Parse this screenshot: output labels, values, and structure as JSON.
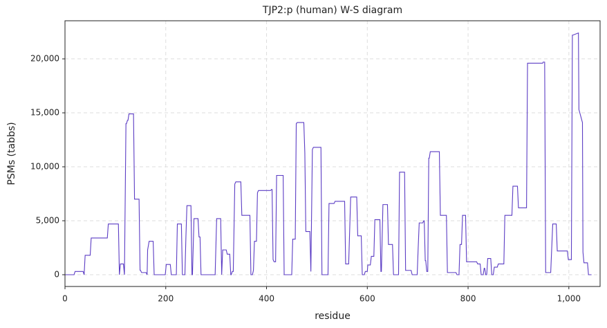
{
  "chart_data": {
    "type": "line",
    "title": "TJP2:p (human) W-S diagram",
    "x_label": "residue",
    "y_label": "PSMs (tabbs)",
    "xlim": [
      0,
      1062
    ],
    "ylim": [
      -1090,
      23530
    ],
    "xticks": [
      0,
      200,
      400,
      600,
      800,
      {
        "value": 1000,
        "label": "1,000"
      }
    ],
    "yticks": [
      0,
      {
        "value": 5000,
        "label": "5,000"
      },
      {
        "value": 10000,
        "label": "10,000"
      },
      {
        "value": 15000,
        "label": "15,000"
      },
      {
        "value": 20000,
        "label": "20,000"
      }
    ],
    "grid": true,
    "series": [
      {
        "color": "#5b3cc4",
        "x": [
          0,
          18,
          20,
          36,
          38,
          38,
          40,
          50,
          52,
          84,
          86,
          106,
          108,
          108,
          110,
          116,
          118,
          118,
          121,
          122,
          124,
          125,
          127,
          136,
          138,
          147,
          149,
          150,
          152,
          161,
          163,
          163,
          164,
          164,
          167,
          175,
          177,
          199,
          201,
          209,
          211,
          221,
          223,
          231,
          233,
          238,
          240,
          240,
          242,
          250,
          252,
          253,
          256,
          264,
          266,
          268,
          270,
          298,
          301,
          309,
          311,
          311,
          313,
          320,
          322,
          327,
          329,
          330,
          332,
          334,
          337,
          337,
          339,
          349,
          351,
          367,
          369,
          372,
          374,
          374,
          376,
          380,
          382,
          382,
          384,
          408,
          410,
          411,
          413,
          413,
          415,
          418,
          420,
          433,
          435,
          450,
          452,
          457,
          459,
          459,
          461,
          474,
          476,
          476,
          478,
          486,
          488,
          488,
          491,
          491,
          493,
          508,
          510,
          522,
          524,
          534,
          536,
          555,
          557,
          563,
          567,
          579,
          581,
          588,
          590,
          594,
          596,
          600,
          601,
          606,
          608,
          613,
          615,
          625,
          627,
          628,
          631,
          640,
          642,
          650,
          652,
          662,
          664,
          674,
          676,
          687,
          689,
          699,
          701,
          701,
          703,
          710,
          712,
          713,
          715,
          716,
          718,
          720,
          722,
          723,
          725,
          743,
          745,
          757,
          759,
          776,
          778,
          782,
          784,
          787,
          789,
          795,
          797,
          817,
          819,
          824,
          826,
          830,
          832,
          833,
          835,
          837,
          839,
          845,
          847,
          850,
          852,
          858,
          860,
          871,
          873,
          887,
          889,
          898,
          900,
          916,
          918,
          948,
          949,
          952,
          954,
          964,
          968,
          975,
          977,
          997,
          999,
          1005,
          1007,
          1008,
          1019,
          1019,
          1020,
          1020,
          1027,
          1027,
          1028,
          1028,
          1030,
          1037,
          1039,
          1045
        ],
        "values": [
          0,
          0,
          300,
          300,
          0,
          0,
          1800,
          1800,
          3400,
          3400,
          4700,
          4700,
          0,
          0,
          1000,
          1000,
          0,
          0,
          14000,
          14000,
          14300,
          14300,
          14900,
          14900,
          7000,
          7000,
          400,
          400,
          200,
          200,
          0,
          0,
          2300,
          2300,
          3100,
          3100,
          0,
          0,
          950,
          950,
          0,
          0,
          4700,
          4700,
          0,
          0,
          3500,
          3500,
          6400,
          6400,
          0,
          0,
          5200,
          5200,
          3500,
          3500,
          0,
          0,
          5200,
          5200,
          0,
          0,
          2300,
          2300,
          1900,
          1900,
          0,
          0,
          300,
          300,
          8400,
          8400,
          8600,
          8600,
          5500,
          5500,
          0,
          0,
          400,
          400,
          3100,
          3100,
          7600,
          7600,
          7800,
          7800,
          7900,
          7900,
          1400,
          1400,
          1200,
          1200,
          9200,
          9200,
          0,
          0,
          3300,
          3300,
          14000,
          14000,
          14100,
          14100,
          11300,
          11300,
          4000,
          4000,
          300,
          300,
          11600,
          11600,
          11800,
          11800,
          0,
          0,
          6600,
          6600,
          6800,
          6800,
          1000,
          1000,
          7200,
          7200,
          3600,
          3600,
          0,
          0,
          300,
          300,
          900,
          900,
          1700,
          1700,
          5100,
          5100,
          300,
          300,
          6500,
          6500,
          2800,
          2800,
          0,
          0,
          9500,
          9500,
          400,
          400,
          0,
          0,
          2500,
          2500,
          4800,
          4800,
          5000,
          5000,
          1300,
          1300,
          300,
          300,
          10800,
          10800,
          11400,
          11400,
          5500,
          5500,
          200,
          200,
          0,
          0,
          2800,
          2800,
          5500,
          5500,
          1200,
          1200,
          1000,
          1000,
          0,
          0,
          600,
          600,
          0,
          0,
          1500,
          1500,
          0,
          0,
          700,
          700,
          1000,
          1000,
          5500,
          5500,
          8200,
          8200,
          6200,
          6200,
          19600,
          19600,
          19700,
          19700,
          200,
          200,
          4700,
          4700,
          2200,
          2200,
          1400,
          1400,
          22200,
          22200,
          22400,
          22400,
          15300,
          15300,
          14100,
          14100,
          2100,
          2100,
          1100,
          1100,
          0,
          0
        ]
      }
    ]
  }
}
